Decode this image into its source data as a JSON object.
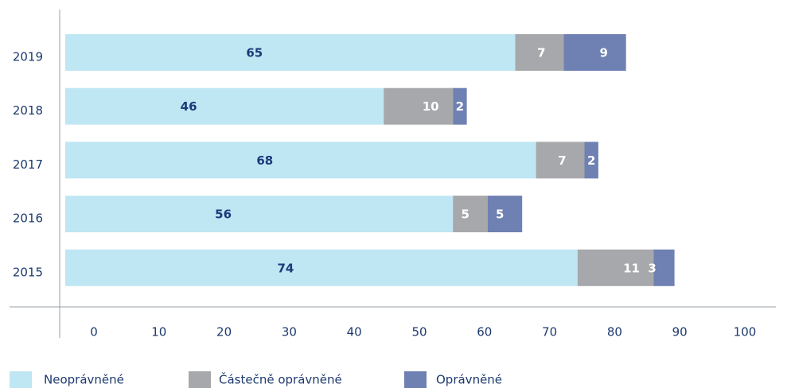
{
  "chart_data": {
    "type": "stacked-bar-horizontal",
    "categories": [
      "2019",
      "2018",
      "2017",
      "2016",
      "2015"
    ],
    "series": [
      {
        "name": "Neoprávněné",
        "color": "#bfe6f3",
        "values": [
          65,
          46,
          68,
          56,
          74
        ]
      },
      {
        "name": "Částečně oprávněné",
        "color": "#a7a8ab",
        "values": [
          7,
          10,
          7,
          5,
          11
        ]
      },
      {
        "name": "Oprávněné",
        "color": "#6f80b2",
        "values": [
          9,
          2,
          2,
          5,
          3
        ]
      }
    ],
    "xlim": [
      0,
      100
    ],
    "xticks": [
      0,
      10,
      20,
      30,
      40,
      50,
      60,
      70,
      80,
      90,
      100
    ],
    "legend": "bottom"
  }
}
